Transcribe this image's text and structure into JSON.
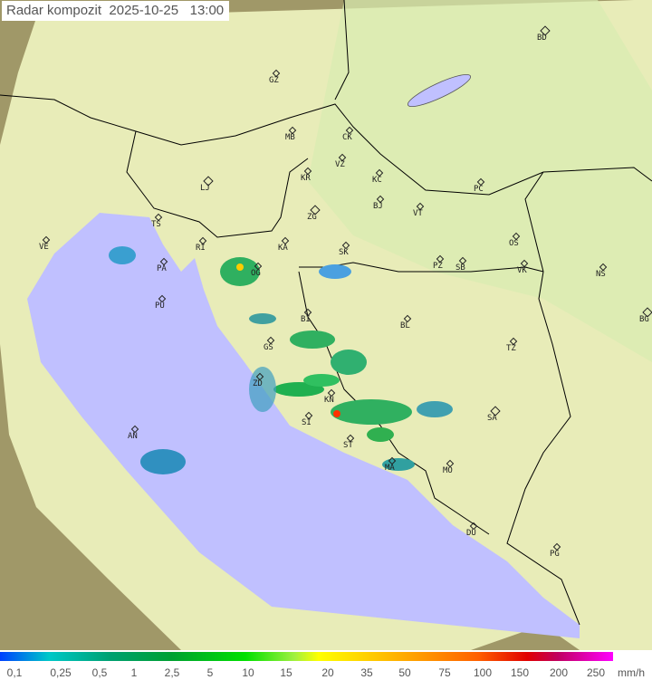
{
  "title": "Radar kompozit  2025-10-25   13:00",
  "colors": {
    "land": "#f0f0c0",
    "sea": "#c0c0ff",
    "outside": "#a8a070",
    "border": "#000000"
  },
  "cities": [
    {
      "code": "BD",
      "major": true
    },
    {
      "code": "GZ"
    },
    {
      "code": "MB"
    },
    {
      "code": "CK"
    },
    {
      "code": "VZ"
    },
    {
      "code": "KR"
    },
    {
      "code": "KC"
    },
    {
      "code": "LJ",
      "major": true
    },
    {
      "code": "PC"
    },
    {
      "code": "BJ"
    },
    {
      "code": "ZG",
      "major": true
    },
    {
      "code": "VT"
    },
    {
      "code": "TS"
    },
    {
      "code": "VE"
    },
    {
      "code": "RI"
    },
    {
      "code": "KA"
    },
    {
      "code": "SK"
    },
    {
      "code": "OS"
    },
    {
      "code": "PA"
    },
    {
      "code": "OG"
    },
    {
      "code": "PZ"
    },
    {
      "code": "SB"
    },
    {
      "code": "VK"
    },
    {
      "code": "NS"
    },
    {
      "code": "PU"
    },
    {
      "code": "BI"
    },
    {
      "code": "BL"
    },
    {
      "code": "BG",
      "major": true
    },
    {
      "code": "GS"
    },
    {
      "code": "TZ"
    },
    {
      "code": "ZD"
    },
    {
      "code": "KN"
    },
    {
      "code": "SA",
      "major": true
    },
    {
      "code": "SI"
    },
    {
      "code": "AN"
    },
    {
      "code": "ST"
    },
    {
      "code": "MO"
    },
    {
      "code": "MA"
    },
    {
      "code": "DU"
    },
    {
      "code": "PG"
    }
  ],
  "legend": {
    "ticks": [
      "0,1",
      "0,25",
      "0,5",
      "1",
      "2,5",
      "5",
      "10",
      "15",
      "20",
      "35",
      "50",
      "75",
      "100",
      "150",
      "200",
      "250"
    ],
    "unit": "mm/h"
  }
}
